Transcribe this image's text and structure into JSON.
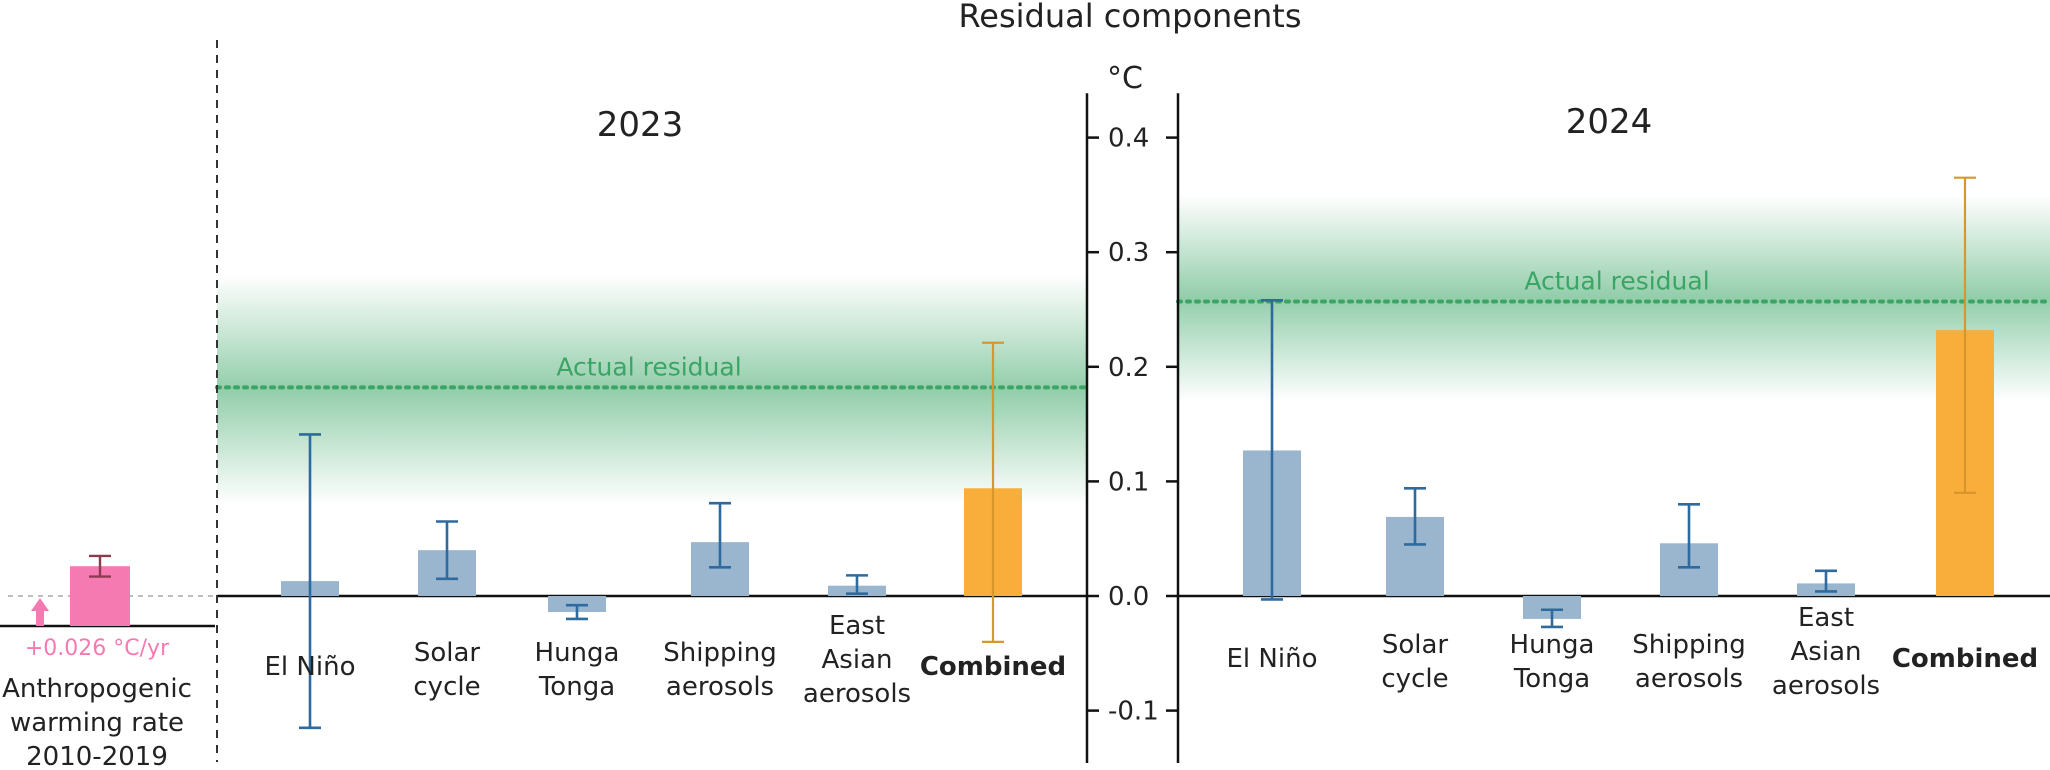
{
  "colors": {
    "bar": "#9ab6cf",
    "bar_err": "#2e6a9e",
    "combined": "#f9ad3a",
    "combined_err": "#d8962d",
    "actual": "#3aa565",
    "band": "#3aa565",
    "anthro": "#f57ab2",
    "anthro_err": "#8c3b4e",
    "axis": "#111111"
  },
  "chart_data": {
    "type": "bar",
    "title": "Residual components",
    "yunit": "°C",
    "ylim": [
      -0.13,
      0.43
    ],
    "yticks": [
      {
        "v": 0.4,
        "label": "0.4"
      },
      {
        "v": 0.3,
        "label": "0.3"
      },
      {
        "v": 0.2,
        "label": "0.2"
      },
      {
        "v": 0.1,
        "label": "0.1"
      },
      {
        "v": 0.0,
        "label": "0.0"
      },
      {
        "v": -0.1,
        "label": "-0.1"
      }
    ],
    "anthropogenic": {
      "label_lines": [
        "Anthropogenic",
        "warming rate",
        "2010-2019"
      ],
      "rate_label": "+0.026 °C/yr",
      "value": 0.026,
      "err_low": 0.017,
      "err_high": 0.035
    },
    "panels": [
      {
        "year": "2023",
        "actual_residual": {
          "label": "Actual residual",
          "value": 0.182,
          "band_low": 0.08,
          "band_high": 0.28
        },
        "bars": [
          {
            "label_lines": [
              "El Niño"
            ],
            "value": 0.013,
            "err_low": -0.115,
            "err_high": 0.141,
            "combined": false
          },
          {
            "label_lines": [
              "Solar",
              "cycle"
            ],
            "value": 0.04,
            "err_low": 0.015,
            "err_high": 0.065,
            "combined": false
          },
          {
            "label_lines": [
              "Hunga",
              "Tonga"
            ],
            "value": -0.014,
            "err_low": -0.02,
            "err_high": -0.008,
            "combined": false
          },
          {
            "label_lines": [
              "Shipping",
              "aerosols"
            ],
            "value": 0.047,
            "err_low": 0.025,
            "err_high": 0.081,
            "combined": false
          },
          {
            "label_lines": [
              "East",
              "Asian",
              "aerosols"
            ],
            "value": 0.009,
            "err_low": 0.002,
            "err_high": 0.018,
            "combined": false
          },
          {
            "label_lines": [
              "Combined"
            ],
            "value": 0.094,
            "err_low": -0.04,
            "err_high": 0.221,
            "combined": true
          }
        ]
      },
      {
        "year": "2024",
        "actual_residual": {
          "label": "Actual residual",
          "value": 0.257,
          "band_low": 0.17,
          "band_high": 0.35
        },
        "bars": [
          {
            "label_lines": [
              "El Niño"
            ],
            "value": 0.127,
            "err_low": -0.003,
            "err_high": 0.258,
            "combined": false
          },
          {
            "label_lines": [
              "Solar",
              "cycle"
            ],
            "value": 0.069,
            "err_low": 0.045,
            "err_high": 0.094,
            "combined": false
          },
          {
            "label_lines": [
              "Hunga",
              "Tonga"
            ],
            "value": -0.02,
            "err_low": -0.027,
            "err_high": -0.012,
            "combined": false
          },
          {
            "label_lines": [
              "Shipping",
              "aerosols"
            ],
            "value": 0.046,
            "err_low": 0.025,
            "err_high": 0.08,
            "combined": false
          },
          {
            "label_lines": [
              "East",
              "Asian",
              "aerosols"
            ],
            "value": 0.011,
            "err_low": 0.004,
            "err_high": 0.022,
            "combined": false
          },
          {
            "label_lines": [
              "Combined"
            ],
            "value": 0.232,
            "err_low": 0.09,
            "err_high": 0.365,
            "combined": true
          }
        ]
      }
    ]
  }
}
